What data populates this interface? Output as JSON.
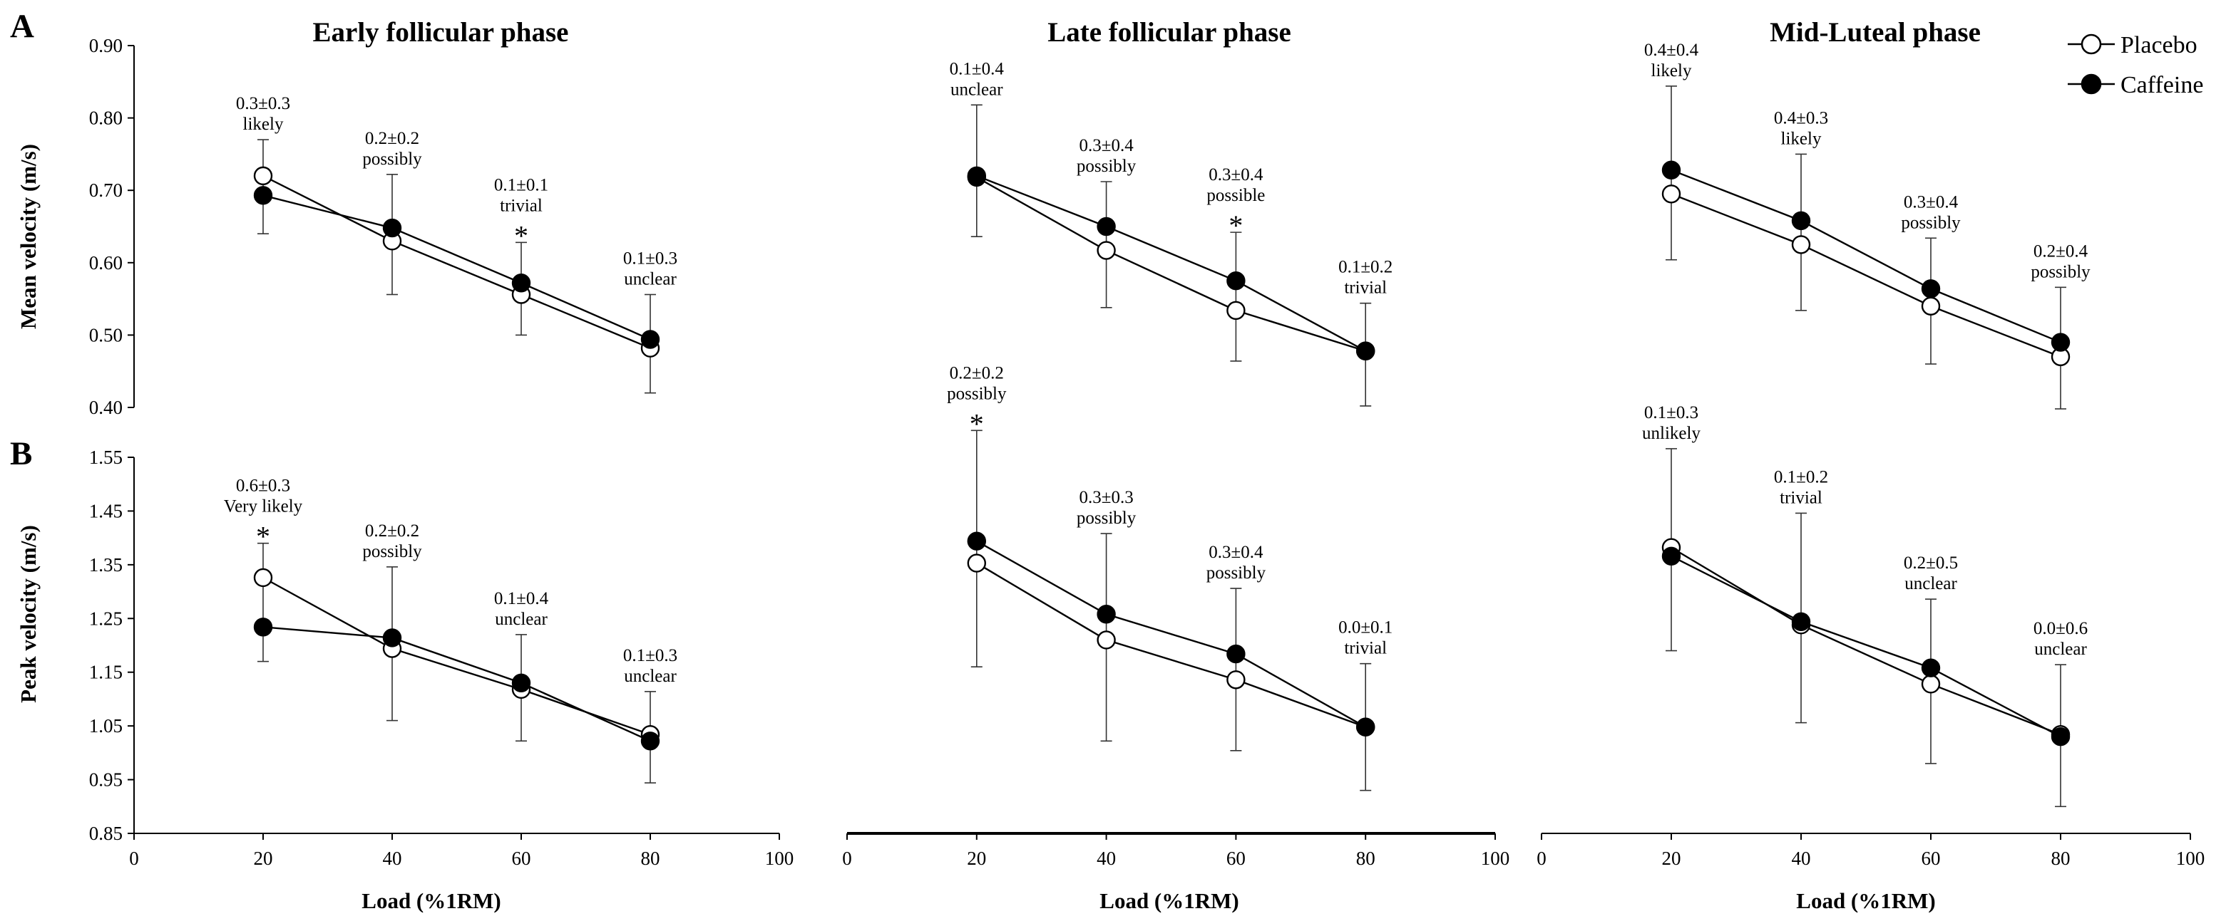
{
  "figure": {
    "panel_labels": [
      "A",
      "B"
    ],
    "legend": [
      {
        "name": "Placebo",
        "marker": "open-circle"
      },
      {
        "name": "Caffeine",
        "marker": "filled-circle"
      }
    ],
    "colors": {
      "line": "#000000",
      "placebo_fill": "#ffffff",
      "caffeine_fill": "#000000"
    }
  },
  "chart_data": [
    {
      "type": "line",
      "panel": "A",
      "title": "Early follicular phase",
      "xlabel": "",
      "ylabel": "Mean velocity (m/s)",
      "xlim": [
        0,
        100
      ],
      "ylim": [
        0.4,
        0.9
      ],
      "xticks": [
        "0",
        "20",
        "40",
        "60",
        "80",
        "100"
      ],
      "yticks": [
        "0.40",
        "0.50",
        "0.60",
        "0.70",
        "0.80",
        "0.90"
      ],
      "x": [
        20,
        40,
        60,
        80
      ],
      "series": [
        {
          "name": "Placebo",
          "values": [
            0.72,
            0.63,
            0.556,
            0.482
          ],
          "err_low": [
            0.64,
            0.556,
            0.5,
            0.42
          ],
          "err_high": [
            0.77,
            0.722,
            0.628,
            0.556
          ]
        },
        {
          "name": "Caffeine",
          "values": [
            0.693,
            0.648,
            0.572,
            0.494
          ],
          "err_low": [
            0.64,
            0.556,
            0.5,
            0.42
          ],
          "err_high": [
            0.77,
            0.722,
            0.628,
            0.556
          ]
        }
      ],
      "annotations": [
        {
          "x": 20,
          "effect": "0.3±0.3",
          "label": "likely",
          "star": false
        },
        {
          "x": 40,
          "effect": "0.2±0.2",
          "label": "possibly",
          "star": false
        },
        {
          "x": 60,
          "effect": "0.1±0.1",
          "label": "trivial",
          "star": true
        },
        {
          "x": 80,
          "effect": "0.1±0.3",
          "label": "unclear",
          "star": false
        }
      ]
    },
    {
      "type": "line",
      "panel": "A",
      "title": "Late follicular phase",
      "xlabel": "",
      "ylabel": "",
      "xlim": [
        0,
        100
      ],
      "ylim": [
        0.4,
        0.9
      ],
      "x": [
        20,
        40,
        60,
        80
      ],
      "series": [
        {
          "name": "Placebo",
          "values": [
            0.718,
            0.617,
            0.534,
            0.478
          ],
          "err_low": [
            0.636,
            0.538,
            0.464,
            0.402
          ],
          "err_high": [
            0.818,
            0.712,
            0.642,
            0.544
          ]
        },
        {
          "name": "Caffeine",
          "values": [
            0.72,
            0.65,
            0.575,
            0.478
          ],
          "err_low": [
            0.636,
            0.538,
            0.464,
            0.402
          ],
          "err_high": [
            0.818,
            0.712,
            0.642,
            0.544
          ]
        }
      ],
      "annotations": [
        {
          "x": 20,
          "effect": "0.1±0.4",
          "label": "unclear",
          "star": false
        },
        {
          "x": 40,
          "effect": "0.3±0.4",
          "label": "possibly",
          "star": false
        },
        {
          "x": 60,
          "effect": "0.3±0.4",
          "label": "possible",
          "star": true
        },
        {
          "x": 80,
          "effect": "0.1±0.2",
          "label": "trivial",
          "star": false
        }
      ]
    },
    {
      "type": "line",
      "panel": "A",
      "title": "Mid-Luteal phase",
      "xlabel": "",
      "ylabel": "",
      "xlim": [
        0,
        100
      ],
      "ylim": [
        0.4,
        0.9
      ],
      "x": [
        20,
        40,
        60,
        80
      ],
      "series": [
        {
          "name": "Placebo",
          "values": [
            0.695,
            0.625,
            0.54,
            0.47
          ],
          "err_low": [
            0.604,
            0.534,
            0.46,
            0.398
          ],
          "err_high": [
            0.844,
            0.75,
            0.634,
            0.566
          ]
        },
        {
          "name": "Caffeine",
          "values": [
            0.728,
            0.658,
            0.564,
            0.49
          ],
          "err_low": [
            0.604,
            0.534,
            0.46,
            0.398
          ],
          "err_high": [
            0.844,
            0.75,
            0.634,
            0.566
          ]
        }
      ],
      "annotations": [
        {
          "x": 20,
          "effect": "0.4±0.4",
          "label": "likely",
          "star": false
        },
        {
          "x": 40,
          "effect": "0.4±0.3",
          "label": "likely",
          "star": false
        },
        {
          "x": 60,
          "effect": "0.3±0.4",
          "label": "possibly",
          "star": false
        },
        {
          "x": 80,
          "effect": "0.2±0.4",
          "label": "possibly",
          "star": false
        }
      ]
    },
    {
      "type": "line",
      "panel": "B",
      "title": "",
      "xlabel": "Load (%1RM)",
      "ylabel": "Peak velocity (m/s)",
      "xlim": [
        0,
        100
      ],
      "ylim": [
        0.85,
        1.55
      ],
      "xticks": [
        "0",
        "20",
        "40",
        "60",
        "80",
        "100"
      ],
      "yticks": [
        "0.85",
        "0.95",
        "1.05",
        "1.15",
        "1.25",
        "1.35",
        "1.45",
        "1.55"
      ],
      "x": [
        20,
        40,
        60,
        80
      ],
      "series": [
        {
          "name": "Placebo",
          "values": [
            1.326,
            1.194,
            1.118,
            1.034
          ],
          "err_low": [
            1.17,
            1.06,
            1.022,
            0.944
          ],
          "err_high": [
            1.39,
            1.346,
            1.22,
            1.114
          ]
        },
        {
          "name": "Caffeine",
          "values": [
            1.234,
            1.214,
            1.13,
            1.022
          ],
          "err_low": [
            1.17,
            1.06,
            1.022,
            0.944
          ],
          "err_high": [
            1.39,
            1.346,
            1.22,
            1.114
          ]
        }
      ],
      "annotations": [
        {
          "x": 20,
          "effect": "0.6±0.3",
          "label": "Very likely",
          "star": true
        },
        {
          "x": 40,
          "effect": "0.2±0.2",
          "label": "possibly",
          "star": false
        },
        {
          "x": 60,
          "effect": "0.1±0.4",
          "label": "unclear",
          "star": false
        },
        {
          "x": 80,
          "effect": "0.1±0.3",
          "label": "unclear",
          "star": false
        }
      ]
    },
    {
      "type": "line",
      "panel": "B",
      "title": "",
      "xlabel": "Load (%1RM)",
      "ylabel": "",
      "xlim": [
        0,
        100
      ],
      "ylim": [
        0.85,
        1.55
      ],
      "xticks": [
        "0",
        "20",
        "40",
        "60",
        "80",
        "100"
      ],
      "x": [
        20,
        40,
        60,
        80
      ],
      "series": [
        {
          "name": "Placebo",
          "values": [
            1.353,
            1.21,
            1.136,
            1.048
          ],
          "err_low": [
            1.16,
            1.022,
            1.004,
            0.93
          ],
          "err_high": [
            1.6,
            1.408,
            1.306,
            1.166
          ]
        },
        {
          "name": "Caffeine",
          "values": [
            1.394,
            1.258,
            1.184,
            1.048
          ],
          "err_low": [
            1.16,
            1.022,
            1.004,
            0.93
          ],
          "err_high": [
            1.6,
            1.408,
            1.306,
            1.166
          ]
        }
      ],
      "annotations": [
        {
          "x": 20,
          "effect": "0.2±0.2",
          "label": "possibly",
          "star": true
        },
        {
          "x": 40,
          "effect": "0.3±0.3",
          "label": "possibly",
          "star": false
        },
        {
          "x": 60,
          "effect": "0.3±0.4",
          "label": "possibly",
          "star": false
        },
        {
          "x": 80,
          "effect": "0.0±0.1",
          "label": "trivial",
          "star": false
        }
      ]
    },
    {
      "type": "line",
      "panel": "B",
      "title": "",
      "xlabel": "Load (%1RM)",
      "ylabel": "",
      "xlim": [
        0,
        100
      ],
      "ylim": [
        0.85,
        1.55
      ],
      "xticks": [
        "0",
        "20",
        "40",
        "60",
        "80",
        "100"
      ],
      "x": [
        20,
        40,
        60,
        80
      ],
      "series": [
        {
          "name": "Placebo",
          "values": [
            1.382,
            1.238,
            1.128,
            1.034
          ],
          "err_low": [
            1.19,
            1.056,
            0.98,
            0.9
          ],
          "err_high": [
            1.566,
            1.446,
            1.286,
            1.164
          ]
        },
        {
          "name": "Caffeine",
          "values": [
            1.366,
            1.244,
            1.158,
            1.03
          ],
          "err_low": [
            1.19,
            1.056,
            0.98,
            0.9
          ],
          "err_high": [
            1.566,
            1.446,
            1.286,
            1.164
          ]
        }
      ],
      "annotations": [
        {
          "x": 20,
          "effect": "0.1±0.3",
          "label": "unlikely",
          "star": false
        },
        {
          "x": 40,
          "effect": "0.1±0.2",
          "label": "trivial",
          "star": false
        },
        {
          "x": 60,
          "effect": "0.2±0.5",
          "label": "unclear",
          "star": false
        },
        {
          "x": 80,
          "effect": "0.0±0.6",
          "label": "unclear",
          "star": false
        }
      ]
    }
  ]
}
